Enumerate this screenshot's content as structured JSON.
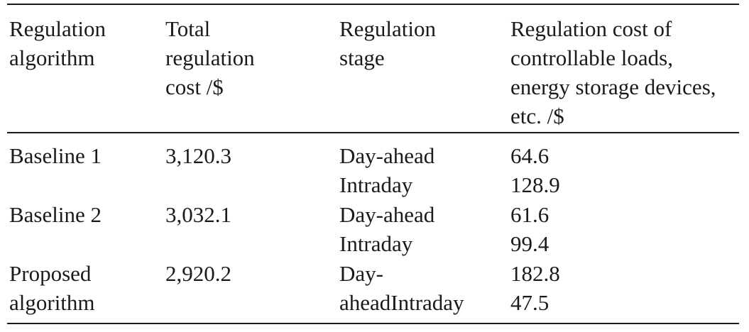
{
  "table": {
    "headers": [
      "Regulation\nalgorithm",
      "Total\nregulation\ncost /$",
      "Regulation\nstage",
      "Regulation cost of\ncontrollable loads,\nenergy storage devices,\netc. /$"
    ],
    "rows": [
      {
        "algorithm": "Baseline 1",
        "total_cost": "3,120.3",
        "stage": "Day-ahead\nIntraday",
        "component_cost": "64.6\n128.9"
      },
      {
        "algorithm": "Baseline 2",
        "total_cost": "3,032.1",
        "stage": "Day-ahead\nIntraday",
        "component_cost": "61.6\n99.4"
      },
      {
        "algorithm": "Proposed\nalgorithm",
        "total_cost": "2,920.2",
        "stage": "Day-\naheadIntraday",
        "component_cost": "182.8\n47.5"
      }
    ]
  }
}
